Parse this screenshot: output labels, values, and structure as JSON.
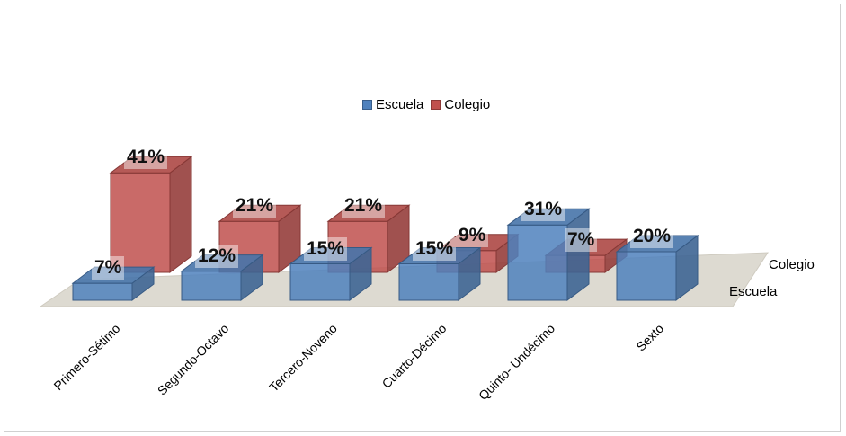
{
  "colors": {
    "escuela": "#4f81bd",
    "colegio": "#c0504d",
    "floor": "#dddad1"
  },
  "legend": {
    "escuela": "Escuela",
    "colegio": "Colegio"
  },
  "chart_data": {
    "type": "bar",
    "style": "3d-clustered-depth",
    "title": "",
    "xlabel": "",
    "ylabel": "",
    "categories": [
      "Primero-Sétimo",
      "Segundo-Octavo",
      "Tercero-Noveno",
      "Cuarto-Décimo",
      "Quinto- Undécimo",
      "Sexto"
    ],
    "series": [
      {
        "name": "Escuela",
        "values": [
          7,
          12,
          15,
          15,
          31,
          20
        ],
        "labels": [
          "7%",
          "12%",
          "15%",
          "15%",
          "31%",
          "20%"
        ]
      },
      {
        "name": "Colegio",
        "values": [
          41,
          21,
          21,
          9,
          7,
          null
        ],
        "labels": [
          "41%",
          "21%",
          "21%",
          "9%",
          "7%",
          ""
        ]
      }
    ],
    "depth_labels": [
      "Escuela",
      "Colegio"
    ],
    "legend_position": "top-center",
    "grid": false
  }
}
